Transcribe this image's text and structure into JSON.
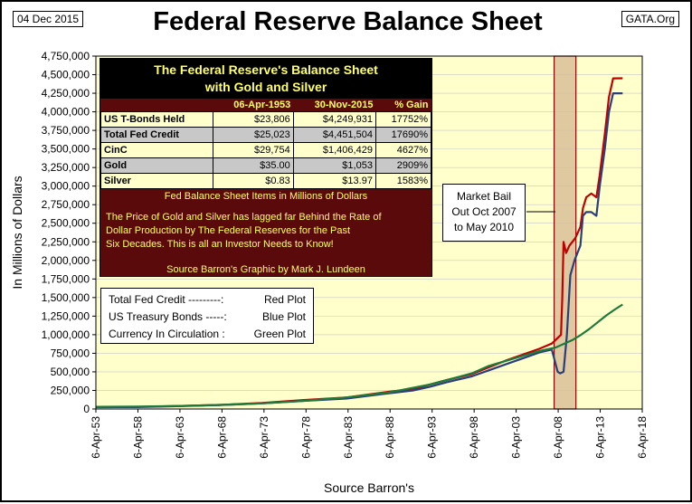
{
  "header": {
    "date": "04 Dec 2015",
    "site": "GATA.Org"
  },
  "info_box": {
    "title_line1": "The Federal Reserve's Balance Sheet",
    "title_line2": "with Gold and Silver",
    "columns": [
      "06-Apr-1953",
      "30-Nov-2015",
      "% Gain"
    ],
    "rows": [
      {
        "name": "US T-Bonds Held",
        "v1953": "$23,806",
        "v2015": "$4,249,931",
        "gain": "17752%"
      },
      {
        "name": "Total Fed Credit",
        "v1953": "$25,023",
        "v2015": "$4,451,504",
        "gain": "17690%"
      },
      {
        "name": "CinC",
        "v1953": "$29,754",
        "v2015": "$1,406,429",
        "gain": "4627%"
      },
      {
        "name": "Gold",
        "v1953": "$35.00",
        "v2015": "$1,053",
        "gain": "2909%"
      },
      {
        "name": "Silver",
        "v1953": "$0.83",
        "v2015": "$13.97",
        "gain": "1583%"
      }
    ],
    "units_note": "Fed Balance Sheet Items in Millions of Dollars",
    "message_line1": "The Price of Gold and Silver has lagged far Behind the Rate of",
    "message_line2": "Dollar Production by The Federal Reserves for the Past",
    "message_line3": "Six Decades.  This is all an Investor Needs to Know!",
    "credit": "Source Barron's    Graphic by Mark J. Lundeen"
  },
  "legend": [
    {
      "label": "Total Fed Credit ---------:",
      "desc": "Red Plot"
    },
    {
      "label": "US Treasury Bonds -----:",
      "desc": "Blue Plot"
    },
    {
      "label": "Currency In Circulation :",
      "desc": "Green Plot"
    }
  ],
  "annotation": {
    "line1": "Market Bail",
    "line2": "Out Oct 2007",
    "line3": "to May 2010"
  },
  "colors": {
    "plot_bg": "#ffffcc",
    "total_fed_credit": "#c00000",
    "us_tbonds": "#2a3f7a",
    "currency": "#1f7a3a",
    "shade": "#d9bf99",
    "shade_border": "#8b0000",
    "grid": "#c8c8c8"
  },
  "chart_data": {
    "type": "line",
    "title": "Federal Reserve Balance Sheet",
    "xlabel": "Source Barron's",
    "ylabel": "In Millions of Dollars",
    "xlim": [
      1953.26,
      2018.26
    ],
    "ylim": [
      0,
      4750000
    ],
    "yticks": [
      0,
      250000,
      500000,
      750000,
      1000000,
      1250000,
      1500000,
      1750000,
      2000000,
      2250000,
      2500000,
      2750000,
      3000000,
      3250000,
      3500000,
      3750000,
      4000000,
      4250000,
      4500000,
      4750000
    ],
    "ytick_labels": [
      "0",
      "250,000",
      "500,000",
      "750,000",
      "1,000,000",
      "1,250,000",
      "1,500,000",
      "1,750,000",
      "2,000,000",
      "2,250,000",
      "2,500,000",
      "2,750,000",
      "3,000,000",
      "3,250,000",
      "3,500,000",
      "3,750,000",
      "4,000,000",
      "4,250,000",
      "4,500,000",
      "4,750,000"
    ],
    "xticks": [
      1953.26,
      1958.26,
      1963.26,
      1968.26,
      1973.26,
      1978.26,
      1983.26,
      1988.26,
      1993.26,
      1998.26,
      2003.26,
      2008.26,
      2013.26,
      2018.26
    ],
    "xtick_labels": [
      "6-Apr-53",
      "6-Apr-58",
      "6-Apr-63",
      "6-Apr-68",
      "6-Apr-73",
      "6-Apr-78",
      "6-Apr-83",
      "6-Apr-88",
      "6-Apr-93",
      "6-Apr-98",
      "6-Apr-03",
      "6-Apr-08",
      "6-Apr-13",
      "6-Apr-18"
    ],
    "shaded_region": {
      "start": 2007.78,
      "end": 2010.37,
      "label": "Market Bail Out Oct 2007 to May 2010"
    },
    "series": [
      {
        "name": "Total Fed Credit",
        "color": "#c00000",
        "x": [
          1953.26,
          1958,
          1963,
          1968,
          1973,
          1978,
          1983,
          1988,
          1991,
          1993,
          1995,
          1998,
          2000,
          2002,
          2004,
          2006,
          2007.5,
          2008.6,
          2008.75,
          2008.9,
          2009.2,
          2009.6,
          2010.3,
          2010.9,
          2011.2,
          2011.6,
          2012.2,
          2012.8,
          2013.2,
          2013.8,
          2014.3,
          2014.8,
          2015.92
        ],
        "y": [
          25023,
          28000,
          40000,
          55000,
          80000,
          120000,
          155000,
          230000,
          270000,
          330000,
          390000,
          470000,
          560000,
          650000,
          730000,
          810000,
          880000,
          1000000,
          1500000,
          2250000,
          2100000,
          2200000,
          2300000,
          2450000,
          2700000,
          2850000,
          2900000,
          2850000,
          3150000,
          3700000,
          4200000,
          4450000,
          4451504
        ]
      },
      {
        "name": "US Treasury Bonds",
        "color": "#2a3f7a",
        "x": [
          1953.26,
          1958,
          1963,
          1968,
          1973,
          1978,
          1983,
          1988,
          1991,
          1993,
          1995,
          1998,
          2000,
          2002,
          2004,
          2006,
          2007.5,
          2008.2,
          2008.5,
          2008.9,
          2009.3,
          2009.7,
          2010.2,
          2010.9,
          2011.2,
          2011.6,
          2012.2,
          2012.8,
          2013.2,
          2013.8,
          2014.3,
          2014.8,
          2015.92
        ],
        "y": [
          23806,
          26000,
          38000,
          52000,
          75000,
          110000,
          140000,
          210000,
          250000,
          300000,
          360000,
          440000,
          520000,
          600000,
          680000,
          760000,
          800000,
          500000,
          480000,
          500000,
          1000000,
          1800000,
          2000000,
          2200000,
          2600000,
          2650000,
          2650000,
          2600000,
          3000000,
          3500000,
          4000000,
          4250000,
          4249931
        ]
      },
      {
        "name": "Currency In Circulation",
        "color": "#1f7a3a",
        "x": [
          1953.26,
          1958,
          1963,
          1968,
          1973,
          1978,
          1983,
          1988,
          1993,
          1998,
          2000,
          2003,
          2006,
          2008,
          2009,
          2010,
          2011,
          2012,
          2013,
          2014,
          2015,
          2015.92
        ],
        "y": [
          29754,
          33000,
          40000,
          55000,
          75000,
          110000,
          155000,
          220000,
          330000,
          480000,
          580000,
          680000,
          780000,
          830000,
          880000,
          930000,
          1000000,
          1080000,
          1170000,
          1260000,
          1340000,
          1406429
        ]
      }
    ]
  }
}
